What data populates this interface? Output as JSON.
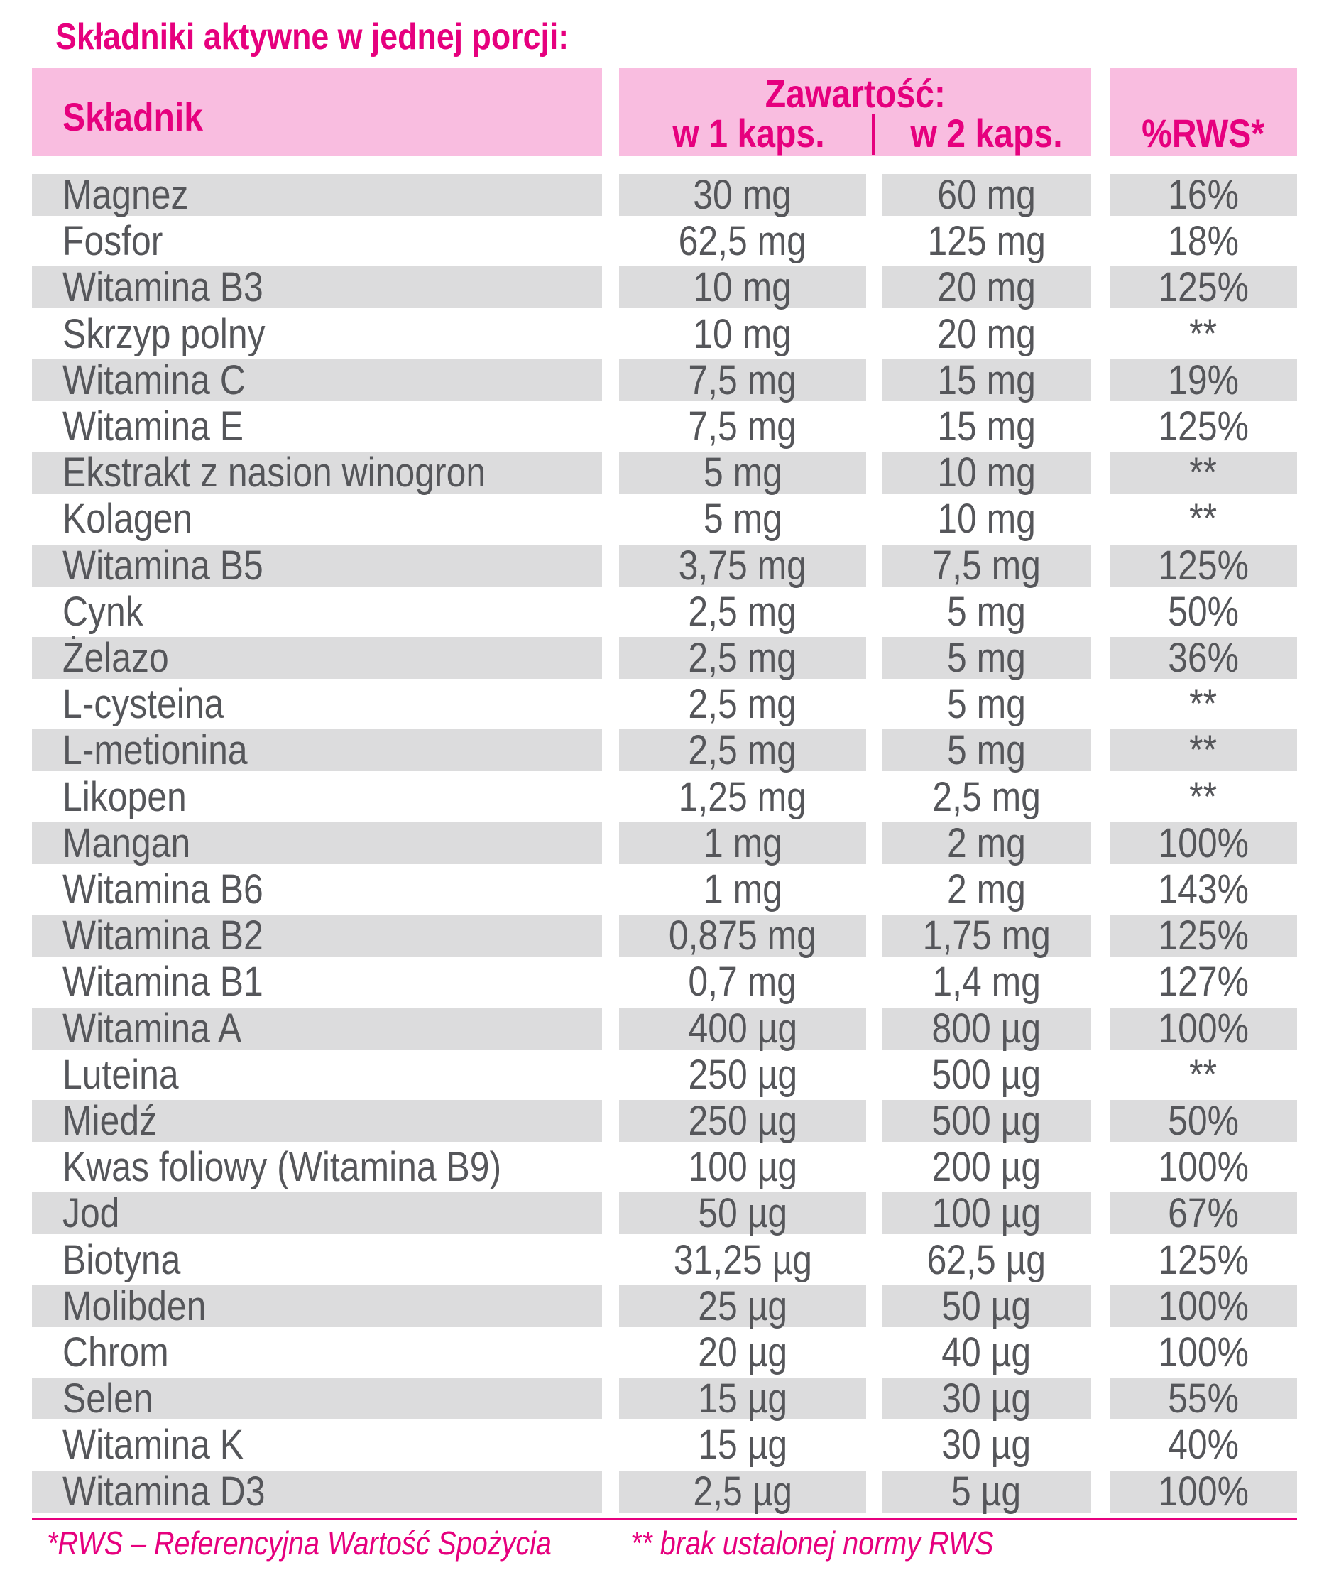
{
  "title": "Składniki aktywne w jednej porcji:",
  "header": {
    "ingredient": "Składnik",
    "content": "Zawartość:",
    "per1": "w 1 kaps.",
    "per2": "w 2 kaps.",
    "rws": "%RWS*"
  },
  "rows": [
    {
      "name": "Magnez",
      "c1": "30 mg",
      "c2": "60 mg",
      "rws": "16%"
    },
    {
      "name": "Fosfor",
      "c1": "62,5 mg",
      "c2": "125 mg",
      "rws": "18%"
    },
    {
      "name": "Witamina B3",
      "c1": "10 mg",
      "c2": "20 mg",
      "rws": "125%"
    },
    {
      "name": "Skrzyp polny",
      "c1": "10 mg",
      "c2": "20 mg",
      "rws": "**"
    },
    {
      "name": "Witamina C",
      "c1": "7,5 mg",
      "c2": "15 mg",
      "rws": "19%"
    },
    {
      "name": "Witamina E",
      "c1": "7,5 mg",
      "c2": "15 mg",
      "rws": "125%"
    },
    {
      "name": "Ekstrakt z nasion winogron",
      "c1": "5 mg",
      "c2": "10 mg",
      "rws": "**"
    },
    {
      "name": "Kolagen",
      "c1": "5 mg",
      "c2": "10 mg",
      "rws": "**"
    },
    {
      "name": "Witamina B5",
      "c1": "3,75 mg",
      "c2": "7,5 mg",
      "rws": "125%"
    },
    {
      "name": "Cynk",
      "c1": "2,5 mg",
      "c2": "5 mg",
      "rws": "50%"
    },
    {
      "name": "Żelazo",
      "c1": "2,5 mg",
      "c2": "5 mg",
      "rws": "36%"
    },
    {
      "name": "L-cysteina",
      "c1": "2,5 mg",
      "c2": "5 mg",
      "rws": "**"
    },
    {
      "name": "L-metionina",
      "c1": "2,5 mg",
      "c2": "5 mg",
      "rws": "**"
    },
    {
      "name": "Likopen",
      "c1": "1,25 mg",
      "c2": "2,5 mg",
      "rws": "**"
    },
    {
      "name": "Mangan",
      "c1": "1 mg",
      "c2": "2 mg",
      "rws": "100%"
    },
    {
      "name": "Witamina B6",
      "c1": "1 mg",
      "c2": "2 mg",
      "rws": "143%"
    },
    {
      "name": "Witamina B2",
      "c1": "0,875 mg",
      "c2": "1,75 mg",
      "rws": "125%"
    },
    {
      "name": "Witamina B1",
      "c1": "0,7 mg",
      "c2": "1,4 mg",
      "rws": "127%"
    },
    {
      "name": "Witamina A",
      "c1": "400 µg",
      "c2": "800 µg",
      "rws": "100%"
    },
    {
      "name": "Luteina",
      "c1": "250 µg",
      "c2": "500 µg",
      "rws": "**"
    },
    {
      "name": "Miedź",
      "c1": "250 µg",
      "c2": "500 µg",
      "rws": "50%"
    },
    {
      "name": "Kwas foliowy (Witamina B9)",
      "c1": "100 µg",
      "c2": "200 µg",
      "rws": "100%"
    },
    {
      "name": "Jod",
      "c1": "50 µg",
      "c2": "100 µg",
      "rws": "67%"
    },
    {
      "name": "Biotyna",
      "c1": "31,25 µg",
      "c2": "62,5 µg",
      "rws": "125%"
    },
    {
      "name": "Molibden",
      "c1": "25 µg",
      "c2": "50 µg",
      "rws": "100%"
    },
    {
      "name": "Chrom",
      "c1": "20 µg",
      "c2": "40 µg",
      "rws": "100%"
    },
    {
      "name": "Selen",
      "c1": "15 µg",
      "c2": "30 µg",
      "rws": "55%"
    },
    {
      "name": "Witamina K",
      "c1": "15 µg",
      "c2": "30 µg",
      "rws": "40%"
    },
    {
      "name": "Witamina D3",
      "c1": "2,5 µg",
      "c2": "5 µg",
      "rws": "100%"
    }
  ],
  "footnotes": {
    "rws": "*RWS – Referencyjna Wartość Spożycia",
    "no_norm": "** brak ustalonej normy RWS"
  },
  "colors": {
    "accent": "#e6007e",
    "header_bg": "#f9bde0",
    "row_shade": "#dcdcdd",
    "text": "#55565a"
  }
}
